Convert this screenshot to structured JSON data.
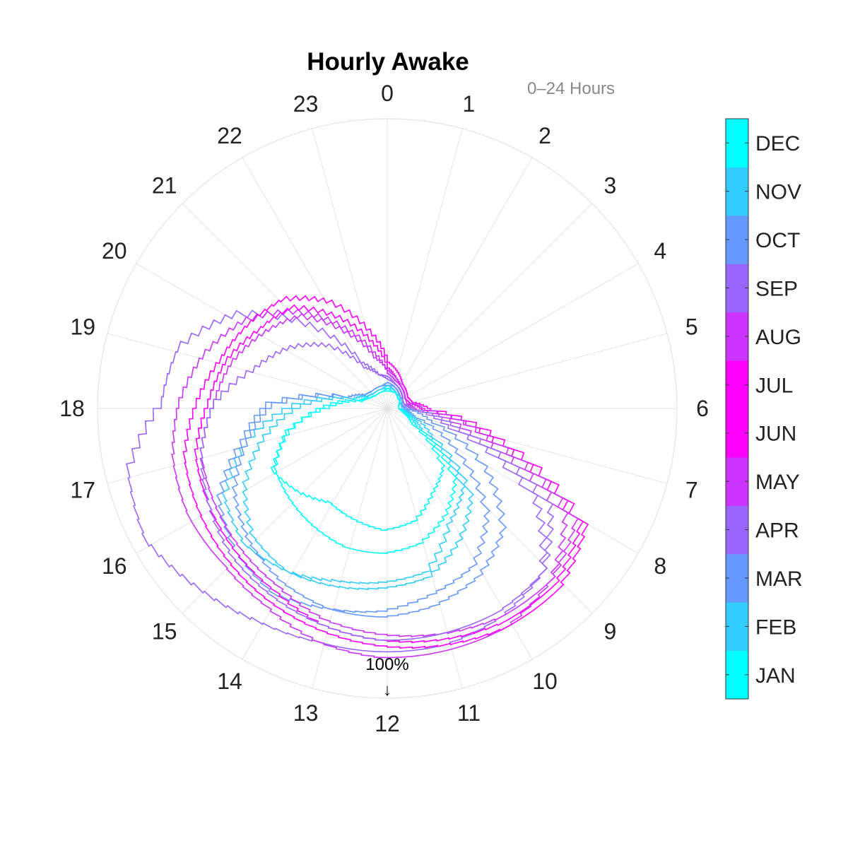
{
  "chart_data": {
    "type": "polar-line",
    "title": "Hourly Awake",
    "angle_note": "0–24 Hours",
    "theta_labels": [
      "0",
      "1",
      "2",
      "3",
      "4",
      "5",
      "6",
      "7",
      "8",
      "9",
      "10",
      "11",
      "12",
      "13",
      "14",
      "15",
      "16",
      "17",
      "18",
      "19",
      "20",
      "21",
      "22",
      "23"
    ],
    "r_max_label": "100%",
    "r_max_arrow": "↓",
    "r_unit": "percent awake",
    "r_range": [
      0,
      100
    ],
    "grid": true,
    "legend": "colorbar-right",
    "colorbar": {
      "labels": [
        "JAN",
        "FEB",
        "MAR",
        "APR",
        "MAY",
        "JUN",
        "JUL",
        "AUG",
        "SEP",
        "OCT",
        "NOV",
        "DEC"
      ],
      "colors": [
        "#00ffff",
        "#33ccff",
        "#6699ff",
        "#9966ff",
        "#cc33ff",
        "#ff00ff",
        "#ff00ff",
        "#cc33ff",
        "#9966ff",
        "#6699ff",
        "#33ccff",
        "#00ffff"
      ]
    },
    "series": [
      {
        "month_index": 0,
        "color": "#00ffff",
        "hourly_r": [
          6,
          6,
          6,
          5,
          5,
          4,
          4,
          6,
          10,
          28,
          33,
          40,
          42,
          40,
          38,
          42,
          45,
          35,
          22,
          10,
          7,
          6,
          6,
          6
        ]
      },
      {
        "month_index": 1,
        "color": "#33ccff",
        "hourly_r": [
          7,
          7,
          6,
          6,
          5,
          5,
          5,
          8,
          14,
          38,
          45,
          58,
          60,
          62,
          66,
          68,
          64,
          50,
          33,
          12,
          8,
          7,
          7,
          7
        ]
      },
      {
        "month_index": 2,
        "color": "#6699ff",
        "hourly_r": [
          8,
          8,
          7,
          6,
          6,
          5,
          6,
          10,
          28,
          50,
          62,
          66,
          70,
          72,
          75,
          72,
          66,
          52,
          42,
          14,
          9,
          8,
          8,
          8
        ]
      },
      {
        "month_index": 3,
        "color": "#9966ff",
        "hourly_r": [
          10,
          9,
          8,
          7,
          6,
          6,
          8,
          22,
          60,
          78,
          82,
          84,
          84,
          84,
          86,
          90,
          95,
          92,
          78,
          75,
          62,
          40,
          18,
          12
        ]
      },
      {
        "month_index": 4,
        "color": "#cc33ff",
        "hourly_r": [
          12,
          10,
          9,
          8,
          7,
          7,
          10,
          30,
          72,
          82,
          86,
          86,
          86,
          84,
          80,
          78,
          78,
          76,
          72,
          66,
          58,
          46,
          32,
          20
        ]
      },
      {
        "month_index": 5,
        "color": "#ff00ff",
        "hourly_r": [
          14,
          11,
          9,
          8,
          7,
          8,
          12,
          38,
          78,
          84,
          84,
          82,
          80,
          78,
          74,
          72,
          70,
          68,
          62,
          58,
          52,
          48,
          36,
          24
        ]
      },
      {
        "month_index": 6,
        "color": "#ff00ff",
        "hourly_r": [
          16,
          13,
          10,
          9,
          8,
          9,
          15,
          42,
          80,
          86,
          86,
          84,
          82,
          80,
          78,
          76,
          74,
          72,
          66,
          60,
          56,
          52,
          42,
          28
        ]
      },
      {
        "month_index": 7,
        "color": "#cc33ff",
        "hourly_r": [
          13,
          11,
          9,
          8,
          7,
          8,
          13,
          36,
          76,
          82,
          82,
          80,
          78,
          76,
          72,
          70,
          68,
          66,
          60,
          56,
          50,
          44,
          30,
          18
        ]
      },
      {
        "month_index": 8,
        "color": "#9966ff",
        "hourly_r": [
          11,
          9,
          8,
          7,
          6,
          6,
          9,
          26,
          66,
          78,
          80,
          80,
          80,
          78,
          76,
          74,
          70,
          66,
          60,
          48,
          40,
          30,
          16,
          12
        ]
      },
      {
        "month_index": 9,
        "color": "#6699ff",
        "hourly_r": [
          9,
          8,
          7,
          6,
          6,
          5,
          7,
          16,
          40,
          58,
          66,
          70,
          72,
          72,
          70,
          66,
          60,
          50,
          40,
          14,
          9,
          8,
          8,
          8
        ]
      },
      {
        "month_index": 10,
        "color": "#33ccff",
        "hourly_r": [
          8,
          7,
          6,
          6,
          5,
          5,
          5,
          9,
          18,
          42,
          52,
          60,
          62,
          64,
          66,
          64,
          56,
          44,
          30,
          12,
          8,
          7,
          7,
          7
        ]
      },
      {
        "month_index": 11,
        "color": "#00ffff",
        "hourly_r": [
          7,
          6,
          6,
          5,
          5,
          4,
          4,
          7,
          12,
          34,
          42,
          48,
          50,
          50,
          48,
          46,
          44,
          36,
          20,
          9,
          7,
          6,
          6,
          6
        ]
      }
    ]
  }
}
